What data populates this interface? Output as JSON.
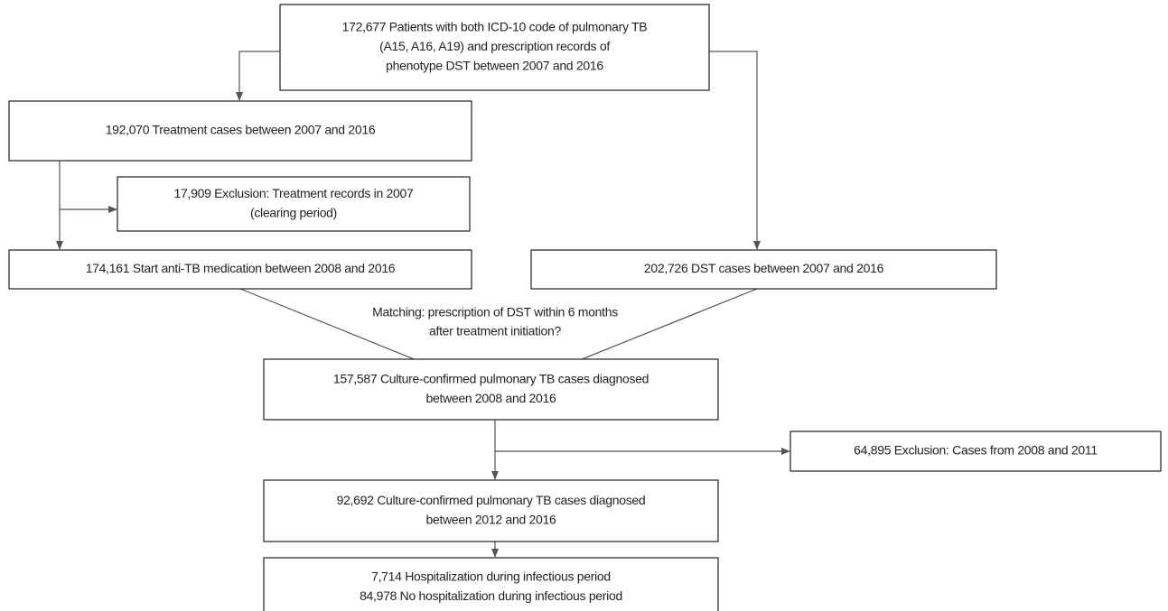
{
  "nodes": [
    {
      "lines": [
        "172,677 Patients with both ICD-10 code of pulmonary TB",
        "(A15, A16, A19) and prescription records of",
        "phenotype DST between 2007 and 2016"
      ]
    },
    {
      "lines": [
        "192,070 Treatment cases between 2007 and 2016"
      ]
    },
    {
      "lines": [
        "17,909 Exclusion: Treatment records in 2007",
        "(clearing period)"
      ]
    },
    {
      "lines": [
        "174,161 Start anti-TB medication between 2008 and 2016"
      ]
    },
    {
      "lines": [
        "202,726 DST cases between 2007 and 2016"
      ]
    },
    {
      "lines": [
        "157,587 Culture-confirmed pulmonary TB cases diagnosed",
        "between 2008 and 2016"
      ]
    },
    {
      "lines": [
        "64,895 Exclusion: Cases from 2008 and 2011"
      ]
    },
    {
      "lines": [
        "92,692 Culture-confirmed pulmonary TB cases diagnosed",
        "between 2012 and 2016"
      ]
    },
    {
      "lines": [
        "7,714 Hospitalization during infectious period",
        "84,978 No hospitalization during infectious period"
      ]
    }
  ],
  "edge_label": {
    "lines": [
      "Matching: prescription of DST within 6 months",
      "after treatment initiation?"
    ]
  }
}
